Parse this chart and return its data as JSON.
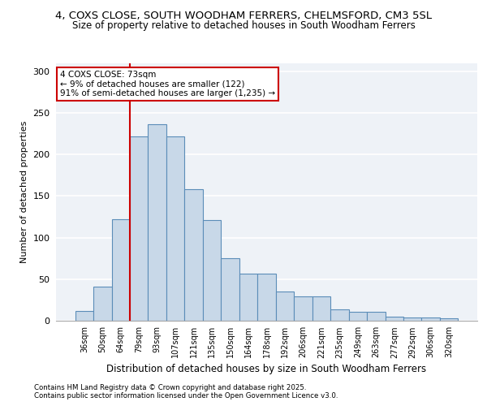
{
  "title_line1": "4, COXS CLOSE, SOUTH WOODHAM FERRERS, CHELMSFORD, CM3 5SL",
  "title_line2": "Size of property relative to detached houses in South Woodham Ferrers",
  "xlabel": "Distribution of detached houses by size in South Woodham Ferrers",
  "ylabel": "Number of detached properties",
  "bar_color": "#c8d8e8",
  "bar_edge_color": "#5b8db8",
  "bins": [
    "36sqm",
    "50sqm",
    "64sqm",
    "79sqm",
    "93sqm",
    "107sqm",
    "121sqm",
    "135sqm",
    "150sqm",
    "164sqm",
    "178sqm",
    "192sqm",
    "206sqm",
    "221sqm",
    "235sqm",
    "249sqm",
    "263sqm",
    "277sqm",
    "292sqm",
    "306sqm",
    "320sqm"
  ],
  "values": [
    12,
    41,
    122,
    222,
    236,
    222,
    158,
    121,
    75,
    57,
    57,
    35,
    29,
    29,
    14,
    11,
    11,
    5,
    4,
    4,
    3
  ],
  "ylim": [
    0,
    310
  ],
  "yticks": [
    0,
    50,
    100,
    150,
    200,
    250,
    300
  ],
  "vline_x_idx": 2.5,
  "vline_color": "#cc0000",
  "annotation_text": "4 COXS CLOSE: 73sqm\n← 9% of detached houses are smaller (122)\n91% of semi-detached houses are larger (1,235) →",
  "annotation_box_color": "#ffffff",
  "annotation_box_edge": "#cc0000",
  "footer_line1": "Contains HM Land Registry data © Crown copyright and database right 2025.",
  "footer_line2": "Contains public sector information licensed under the Open Government Licence v3.0.",
  "background_color": "#eef2f7",
  "grid_color": "#ffffff",
  "title_fontsize": 9.5,
  "subtitle_fontsize": 8.5,
  "bar_width": 1.0
}
